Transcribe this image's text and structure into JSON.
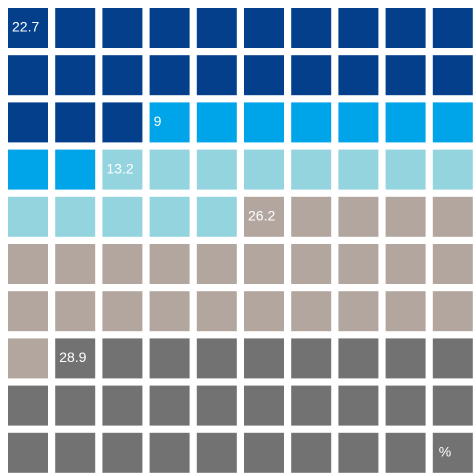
{
  "chart_data": {
    "type": "waffle",
    "values": [
      22.7,
      9,
      13.2,
      26.2,
      28.9
    ],
    "colors": [
      "#033f8a",
      "#00a4e8",
      "#93d4df",
      "#b3a69f",
      "#727272"
    ],
    "unit": "%"
  }
}
